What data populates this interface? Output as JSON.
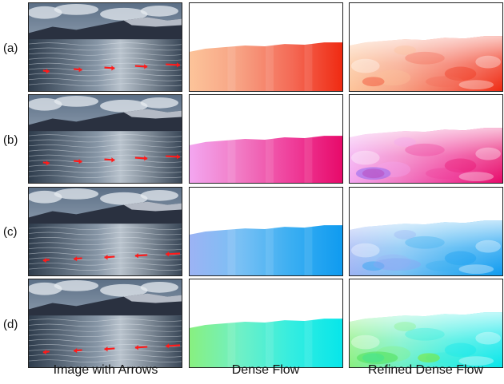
{
  "rows": [
    {
      "label": "(a)",
      "flow": [
        "#fcc49a",
        "#f7a183",
        "#f46a56",
        "#ef2a12"
      ]
    },
    {
      "label": "(b)",
      "flow": [
        "#f3a6f0",
        "#f17ac4",
        "#ef3e9a",
        "#e70a6a"
      ]
    },
    {
      "label": "(c)",
      "flow": [
        "#9cb3f4",
        "#79c0f4",
        "#3aaef2",
        "#0f9bf0"
      ]
    },
    {
      "label": "(d)",
      "flow": [
        "#88f080",
        "#6ff0c6",
        "#34ede0",
        "#07e6ea"
      ]
    }
  ],
  "columns": {
    "image": "Image with Arrows",
    "dense": "Dense Flow",
    "refined": "Refined Dense Flow"
  }
}
